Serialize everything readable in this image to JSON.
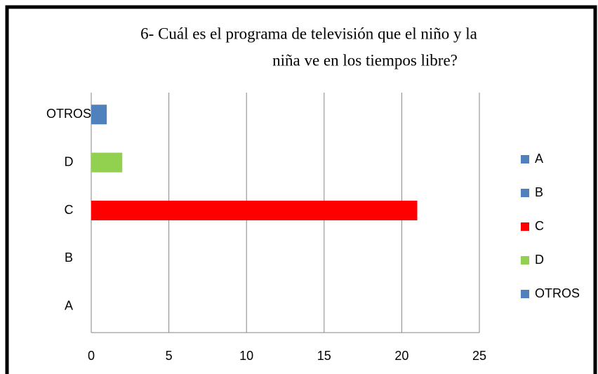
{
  "chart_data": {
    "type": "barh",
    "title": [
      "6- Cuál es el programa de televisión que el niño y la",
      "niña ve en los tiempos libre?"
    ],
    "categories": [
      "A",
      "B",
      "C",
      "D",
      "OTROS"
    ],
    "values": [
      0,
      0,
      21,
      2,
      1
    ],
    "colors": [
      "#4f81bd",
      "#4f81bd",
      "#ff0000",
      "#92d050",
      "#4f81bd"
    ],
    "xlim": [
      0,
      25
    ],
    "xticks": [
      0,
      5,
      10,
      15,
      20,
      25
    ],
    "grid": true,
    "legend": "right"
  }
}
